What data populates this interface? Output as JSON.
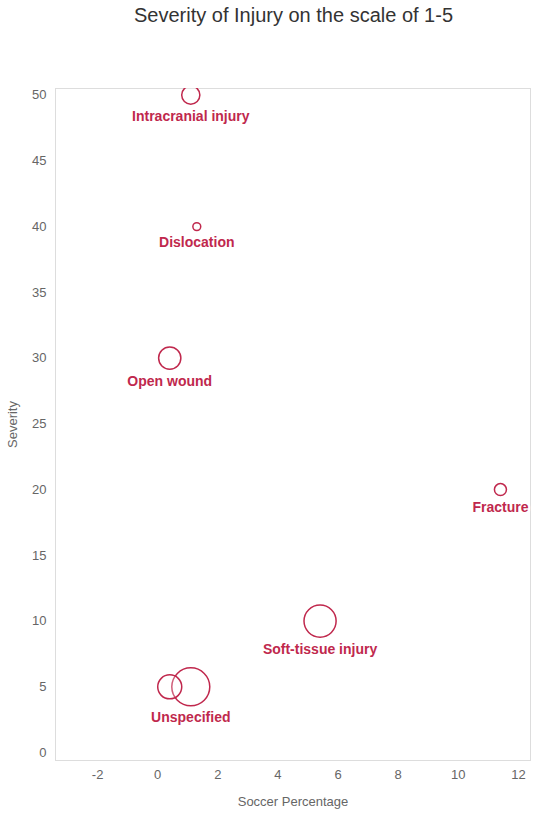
{
  "chart_data": {
    "type": "scatter",
    "title": "Severity of Injury on the scale of 1-5",
    "x_label": "Soccer Percentage",
    "y_label": "Severity",
    "x": [
      1.1,
      1.3,
      0.4,
      11.4,
      5.4,
      0.4,
      1.1
    ],
    "values": [
      50,
      40,
      30,
      20,
      10,
      5,
      5
    ],
    "labels": [
      "Intracranial injury",
      "Dislocation",
      "Open wound",
      "Fracture",
      "Soft-tissue injury",
      null,
      "Unspecified"
    ],
    "sizes": [
      8,
      1.5,
      12,
      3.5,
      25,
      14,
      35
    ],
    "color": "#c0284d",
    "marker": "circle",
    "xlim": [
      -3.4,
      12.4
    ],
    "ylim": [
      -0.6,
      50.5
    ],
    "xticks": [
      -2,
      0,
      2,
      4,
      6,
      8,
      10,
      12
    ],
    "yticks": [
      0,
      5,
      10,
      15,
      20,
      25,
      30,
      35,
      40,
      45,
      50
    ],
    "grid": false
  }
}
